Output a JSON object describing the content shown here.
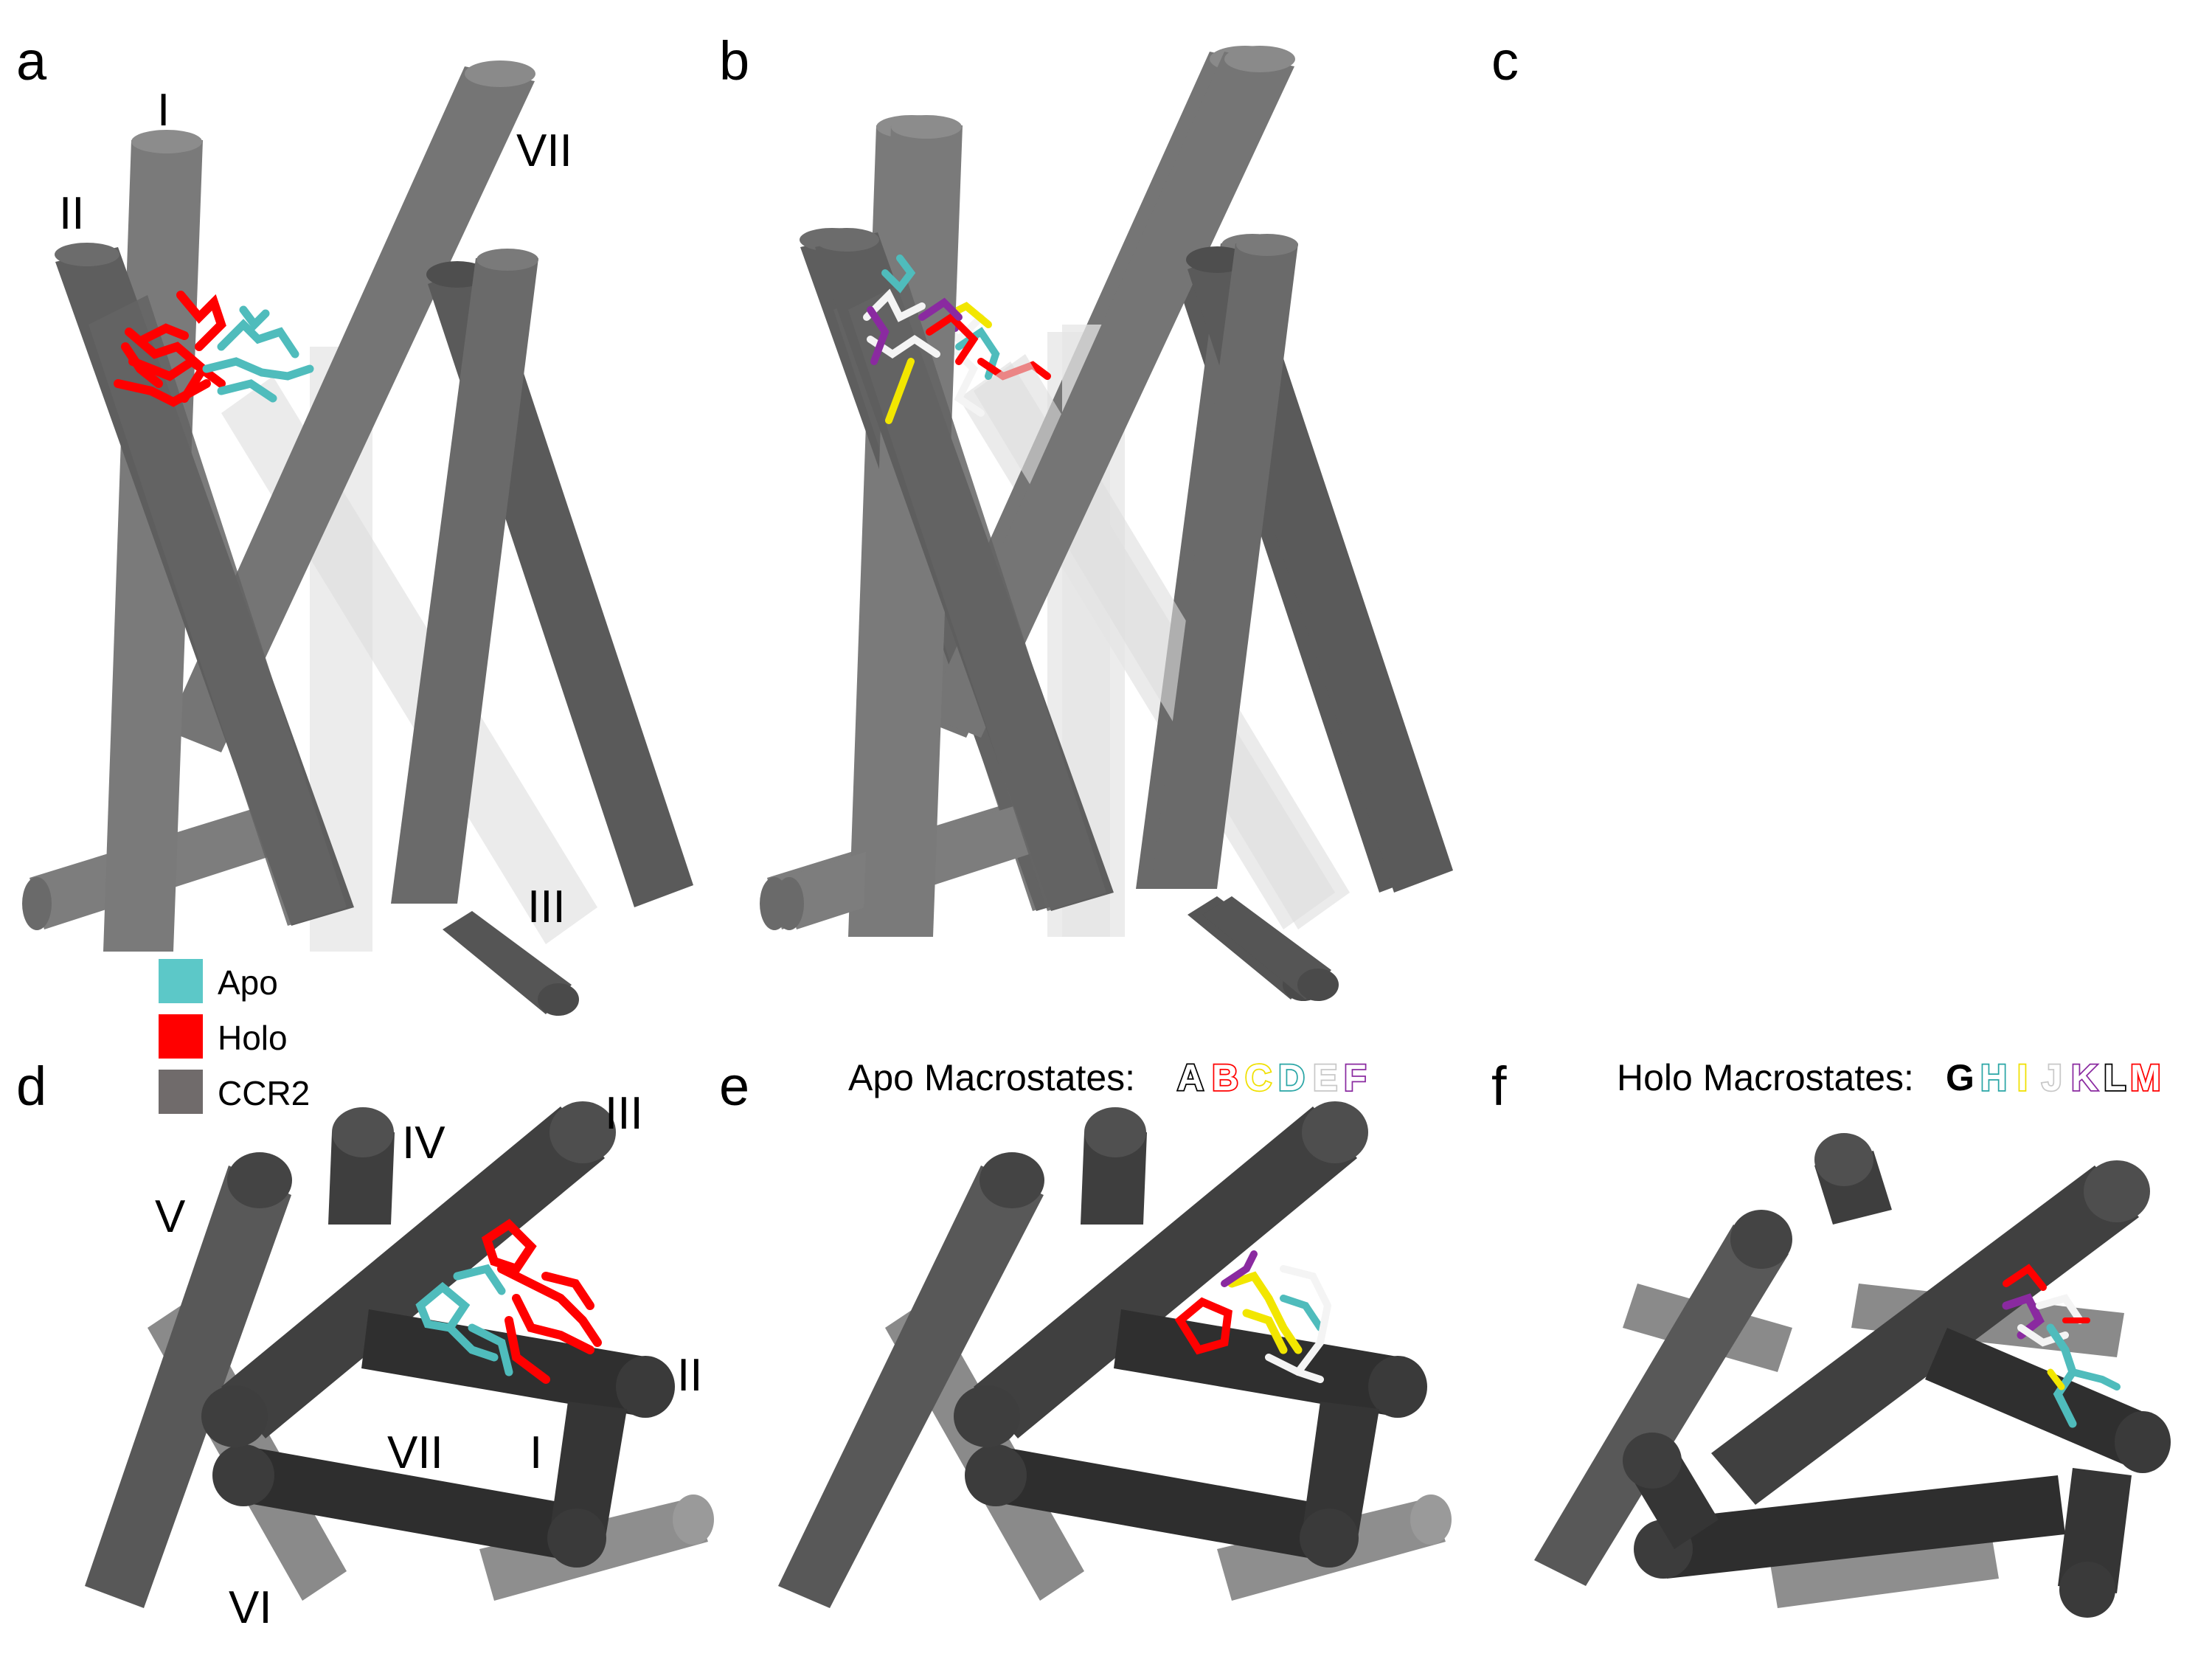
{
  "panels": {
    "a": {
      "letter": "a"
    },
    "b": {
      "letter": "b"
    },
    "c": {
      "letter": "c"
    },
    "d": {
      "letter": "d"
    },
    "e": {
      "letter": "e"
    },
    "f": {
      "letter": "f"
    }
  },
  "side_view_helix_labels": {
    "I": "I",
    "II": "II",
    "III": "III",
    "VII": "VII"
  },
  "top_view_helix_labels": {
    "I": "I",
    "II": "II",
    "III": "III",
    "IV": "IV",
    "V": "V",
    "VI": "VI",
    "VII": "VII"
  },
  "legend": [
    {
      "label": "Apo",
      "color": "#5cc8c8"
    },
    {
      "label": "Holo",
      "color": "#ff0000"
    },
    {
      "label": "CCR2",
      "color": "#706b6b"
    }
  ],
  "apo_macrostates": {
    "title": "Apo  Macrostates:",
    "letters": [
      {
        "letter": "A",
        "fill": "#ffffff",
        "stroke": "#000000"
      },
      {
        "letter": "B",
        "fill": "#ffffff",
        "stroke": "#ff0000"
      },
      {
        "letter": "C",
        "fill": "#ffffff",
        "stroke": "#f0e000"
      },
      {
        "letter": "D",
        "fill": "#ffffff",
        "stroke": "#2aa6a6"
      },
      {
        "letter": "E",
        "fill": "#ffffff",
        "stroke": "#c8c8c8"
      },
      {
        "letter": "F",
        "fill": "#ffffff",
        "stroke": "#8a2aa0"
      }
    ]
  },
  "holo_macrostates": {
    "title": "Holo  Macrostates:",
    "letters": [
      {
        "letter": "G",
        "fill": "#000000",
        "stroke": "#ffffff"
      },
      {
        "letter": "H",
        "fill": "#ffffff",
        "stroke": "#2aa6a6"
      },
      {
        "letter": "I",
        "fill": "#ffffff",
        "stroke": "#f0e000"
      },
      {
        "letter": "J",
        "fill": "#ffffff",
        "stroke": "#c8c8c8"
      },
      {
        "letter": "K",
        "fill": "#ffffff",
        "stroke": "#8a2aa0"
      },
      {
        "letter": "L",
        "fill": "#ffffff",
        "stroke": "#000000"
      },
      {
        "letter": "M",
        "fill": "#ffffff",
        "stroke": "#ff0000"
      }
    ]
  },
  "colors": {
    "helix_dark": "#555555",
    "helix_mid": "#6e6e6e",
    "helix_light": "#8a8a8a",
    "helix_transparent": "#d8d8d8",
    "helix_black": "#2a2a2a",
    "apo": "#4fbcbc",
    "holo": "#ff0000",
    "yellow": "#f2e600",
    "purple": "#8a2aa0",
    "white": "#f4f4f4"
  }
}
